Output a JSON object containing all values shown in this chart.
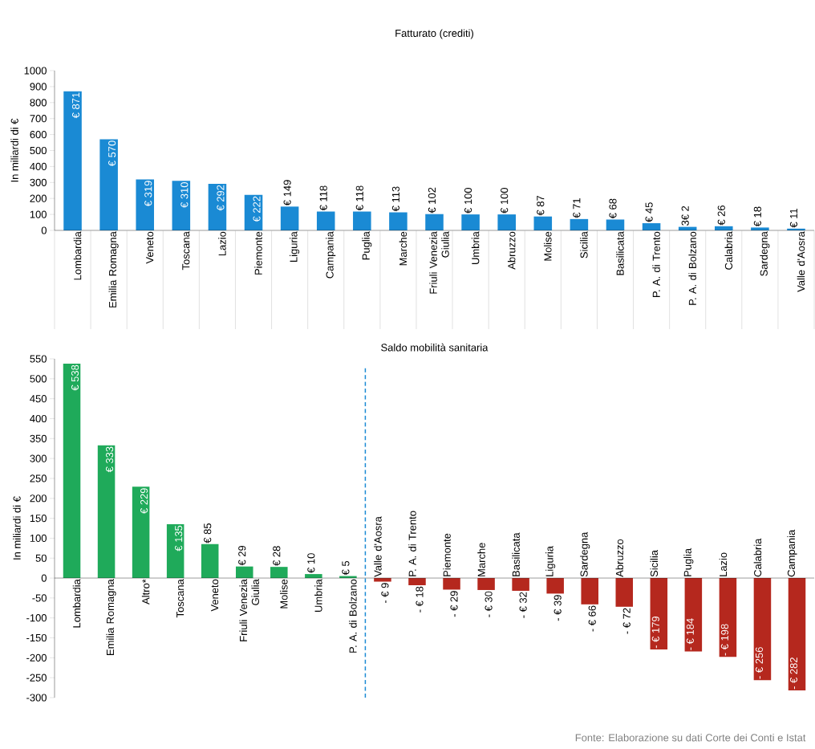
{
  "chart_data": [
    {
      "type": "bar",
      "title": "Fatturato (crediti)",
      "ylabel": "In miliardi di €",
      "categories": [
        "Lombardia",
        "Emilia Romagna",
        "Veneto",
        "Toscana",
        "Lazio",
        "Piemonte",
        "Liguria",
        "Campania",
        "Puglia",
        "Marche",
        "Friuli Venezia Giulia",
        "Umbria",
        "Abruzzo",
        "Molise",
        "Sicilia",
        "Basilicata",
        "P. A. di Trento",
        "P. A. di Bolzano",
        "Calabria",
        "Sardegna",
        "Valle d'Aosra"
      ],
      "values": [
        871,
        570,
        319,
        310,
        292,
        222,
        149,
        118,
        118,
        113,
        102,
        100,
        100,
        87,
        71,
        68,
        45,
        22,
        26,
        18,
        11
      ],
      "value_labels": [
        "€ 871",
        "€ 570",
        "€ 319",
        "€ 310",
        "€ 292",
        "€ 222",
        "€ 149",
        "€ 118",
        "€ 118",
        "€ 113",
        "€ 102",
        "€ 100",
        "€ 100",
        "€ 87",
        "€ 71",
        "€ 68",
        "€ 45",
        null,
        "€ 26",
        "€ 18",
        "€ 11"
      ],
      "annotations": [
        {
          "text": "3€ 2",
          "x": "P. A. di Bolzano",
          "y": 22
        }
      ],
      "color": "#1a8ad4",
      "ylim": [
        0,
        1000
      ],
      "yticks": [
        0,
        100,
        200,
        300,
        400,
        500,
        600,
        700,
        800,
        900,
        1000
      ]
    },
    {
      "type": "bar",
      "title": "Saldo mobilità sanitaria",
      "ylabel": "In miliardi di €",
      "categories": [
        "Lombardia",
        "Emilia Romagna",
        "Altro*",
        "Toscana",
        "Veneto",
        "Friuli Venezia Giulia",
        "Molise",
        "Umbria",
        "P. A. di Bolzano",
        "Valle d'Aosra",
        "P. A. di Trento",
        "Piemonte",
        "Marche",
        "Basilicata",
        "Liguria",
        "Sardegna",
        "Abruzzo",
        "Sicilia",
        "Puglia",
        "Lazio",
        "Calabria",
        "Campania"
      ],
      "values": [
        538,
        333,
        229,
        135,
        85,
        29,
        28,
        10,
        5,
        -9,
        -18,
        -29,
        -30,
        -32,
        -39,
        -66,
        -72,
        -179,
        -184,
        -198,
        -256,
        -282
      ],
      "value_labels": [
        "€ 538",
        "€ 333",
        "€ 229",
        "€ 135",
        "€ 85",
        "€ 29",
        "€ 28",
        "€ 10",
        "€ 5",
        "- € 9",
        "- € 18",
        "- € 29",
        "- € 30",
        "- € 32",
        "- € 39",
        "- € 66",
        "- € 72",
        "- € 179",
        "- € 184",
        "- € 198",
        "- € 256",
        "- € 282"
      ],
      "colors": [
        "#1faa5a",
        "#1faa5a",
        "#1faa5a",
        "#1faa5a",
        "#1faa5a",
        "#1faa5a",
        "#1faa5a",
        "#1faa5a",
        "#1faa5a",
        "#b5281e",
        "#b5281e",
        "#b5281e",
        "#b5281e",
        "#b5281e",
        "#b5281e",
        "#b5281e",
        "#b5281e",
        "#b5281e",
        "#b5281e",
        "#b5281e",
        "#b5281e",
        "#b5281e"
      ],
      "ylim": [
        -300,
        550
      ],
      "yticks": [
        -300,
        -250,
        -200,
        -150,
        -100,
        -50,
        0,
        50,
        100,
        150,
        200,
        250,
        300,
        350,
        400,
        450,
        500,
        550
      ],
      "annotations": [
        "Fonte: Elaborazione su dati Corte dei Conti e Istat"
      ]
    }
  ]
}
